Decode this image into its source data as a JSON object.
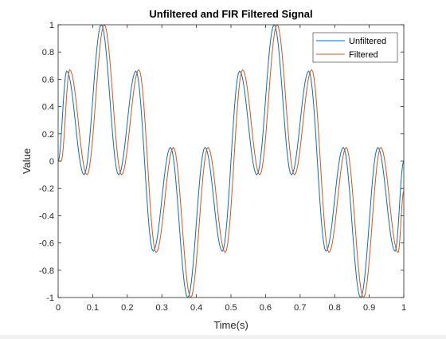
{
  "chart_data": {
    "type": "line",
    "title": "Unfiltered and FIR Filtered Signal",
    "xlabel": "Time(s)",
    "ylabel": "Value",
    "xlim": [
      0,
      1
    ],
    "ylim": [
      -1,
      1
    ],
    "xticks": [
      0,
      0.1,
      0.2,
      0.3,
      0.4,
      0.5,
      0.6,
      0.7,
      0.8,
      0.9,
      1
    ],
    "xtick_labels": [
      "0",
      "0.1",
      "0.2",
      "0.3",
      "0.4",
      "0.5",
      "0.6",
      "0.7",
      "0.8",
      "0.9",
      "1"
    ],
    "yticks": [
      -1,
      -0.8,
      -0.6,
      -0.4,
      -0.2,
      0,
      0.2,
      0.4,
      0.6,
      0.8,
      1
    ],
    "ytick_labels": [
      "-1",
      "-0.8",
      "-0.6",
      "-0.4",
      "-0.2",
      "0",
      "0.2",
      "0.4",
      "0.6",
      "0.8",
      "1"
    ],
    "grid": false,
    "box": true,
    "legend_position": "top-right",
    "series": [
      {
        "name": "Unfiltered",
        "color": "#0072BD",
        "x": [
          0,
          0.025,
          0.075,
          0.125,
          0.175,
          0.225,
          0.275,
          0.325,
          0.375,
          0.425,
          0.475,
          0.525,
          0.575,
          0.625,
          0.675,
          0.725,
          0.775,
          0.825,
          0.875,
          0.925,
          0.975,
          1
        ],
        "values": [
          0,
          0.66,
          -0.1,
          1,
          -0.1,
          0.66,
          -0.66,
          0.1,
          -1,
          0.1,
          -0.66,
          0.66,
          -0.1,
          1,
          -0.1,
          0.66,
          -0.66,
          0.1,
          -1,
          0.1,
          -0.66,
          0
        ]
      },
      {
        "name": "Filtered",
        "color": "#D95319",
        "x": [
          0,
          0.0085,
          0.0335,
          0.0835,
          0.1335,
          0.1835,
          0.2335,
          0.2835,
          0.3335,
          0.3835,
          0.4335,
          0.4835,
          0.5335,
          0.5835,
          0.6335,
          0.6835,
          0.7335,
          0.7835,
          0.8335,
          0.8835,
          0.9335,
          0.9835,
          1
        ],
        "values": [
          0,
          0,
          0.67,
          -0.1,
          1,
          -0.1,
          0.67,
          -0.67,
          0.1,
          -1,
          0.1,
          -0.67,
          0.67,
          -0.1,
          1,
          -0.1,
          0.67,
          -0.67,
          0.1,
          -1,
          0.1,
          -0.67,
          -0.22
        ]
      }
    ]
  }
}
